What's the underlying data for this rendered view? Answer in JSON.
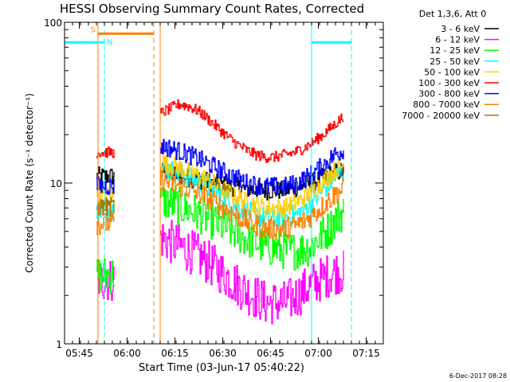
{
  "chart_data": {
    "type": "line",
    "title": "HESSI Observing Summary Count Rates, Corrected",
    "xlabel": "Start Time (03-Jun-17 05:40:22)",
    "ylabel": "Corrected Count Rate (s⁻¹ detector⁻¹)",
    "yscale": "log",
    "ylim": [
      1,
      100
    ],
    "xlim_minutes": [
      0,
      100
    ],
    "x_ticks": [
      "05:45",
      "06:00",
      "06:15",
      "06:30",
      "06:45",
      "07:00",
      "07:15"
    ],
    "x_tick_minutes": [
      4.63,
      19.63,
      34.63,
      49.63,
      64.63,
      79.63,
      94.63
    ],
    "y_ticks": [
      "1",
      "10",
      "100"
    ],
    "y_tick_values": [
      1,
      10,
      100
    ],
    "footer": "6-Dec-2017 08:28",
    "legend": {
      "title": "Det 1,3,6, Att 0",
      "placement": "right",
      "entries": [
        "3 - 6 keV",
        "6 - 12 keV",
        "12 - 25 keV",
        "25 - 50 keV",
        "50 - 100 keV",
        "100 - 300 keV",
        "300 - 800 keV",
        "800 - 7000 keV",
        "7000 - 20000 keV"
      ]
    },
    "series": [
      {
        "name": "3 - 6 keV",
        "color": "#000000",
        "noise": 0.06,
        "segments": [
          {
            "x": [
              10,
              15.5
            ],
            "y": [
              11,
              11
            ]
          },
          {
            "x": [
              30,
              31.5,
              33,
              39,
              45,
              51,
              57,
              63,
              69,
              73,
              77,
              80,
              83,
              85,
              87.5
            ],
            "y": [
              11.5,
              12,
              11.5,
              10.8,
              10.2,
              9.6,
              9.2,
              9.0,
              9.0,
              9.4,
              10.0,
              10.6,
              11.2,
              11.6,
              12
            ]
          }
        ]
      },
      {
        "name": "6 - 12 keV",
        "color": "#ff00ff",
        "noise": 0.14,
        "segments": [
          {
            "x": [
              10,
              15.5
            ],
            "y": [
              2.5,
              2.5
            ]
          },
          {
            "x": [
              30,
              33,
              39,
              45,
              51,
              57,
              63,
              69,
              73,
              77,
              80,
              83,
              85,
              87.5
            ],
            "y": [
              4.6,
              4.3,
              3.8,
              3.2,
              2.6,
              2.1,
              1.8,
              1.8,
              2.0,
              2.3,
              2.5,
              2.7,
              2.8,
              2.8
            ]
          }
        ]
      },
      {
        "name": "12 - 25 keV",
        "color": "#00ff00",
        "noise": 0.12,
        "segments": [
          {
            "x": [
              10,
              15.5
            ],
            "y": [
              2.7,
              2.7
            ]
          },
          {
            "x": [
              30,
              33,
              39,
              45,
              51,
              57,
              63,
              69,
              73,
              77,
              80,
              83,
              85,
              87.5
            ],
            "y": [
              7.8,
              7.5,
              6.8,
              6.0,
              5.2,
              4.5,
              4.0,
              3.8,
              3.8,
              4.0,
              4.6,
              5.2,
              6.0,
              6.6
            ]
          }
        ]
      },
      {
        "name": "25 - 50 keV",
        "color": "#00ffff",
        "noise": 0.07,
        "segments": [
          {
            "x": [
              10,
              15.5
            ],
            "y": [
              6.8,
              6.8
            ]
          },
          {
            "x": [
              30,
              33,
              39,
              45,
              51,
              57,
              63,
              69,
              73,
              77,
              80,
              83,
              85,
              87.5
            ],
            "y": [
              12.5,
              12.0,
              10.8,
              9.4,
              7.8,
              6.6,
              6.0,
              6.0,
              6.4,
              7.4,
              8.6,
              10.0,
              11.0,
              12.0
            ]
          }
        ]
      },
      {
        "name": "50 - 100 keV",
        "color": "#ffcc00",
        "noise": 0.06,
        "segments": [
          {
            "x": [
              10,
              15.5
            ],
            "y": [
              8.3,
              8.3
            ]
          },
          {
            "x": [
              30,
              33,
              39,
              45,
              51,
              57,
              63,
              69,
              73,
              77,
              80,
              83,
              85,
              87.5
            ],
            "y": [
              13.5,
              13.0,
              11.8,
              10.4,
              8.8,
              7.6,
              7.0,
              7.0,
              7.6,
              8.6,
              9.8,
              11.2,
              12.2,
              13.0
            ]
          }
        ]
      },
      {
        "name": "100 - 300 keV",
        "color": "#ff0000",
        "noise": 0.035,
        "segments": [
          {
            "x": [
              10,
              15.5
            ],
            "y": [
              15.5,
              15.5
            ]
          },
          {
            "x": [
              30,
              33,
              36,
              39,
              42,
              45,
              48,
              51,
              54,
              57,
              60,
              63,
              66,
              69,
              72,
              75,
              78,
              81,
              84,
              86,
              87.5
            ],
            "y": [
              27,
              29,
              31,
              30,
              28,
              25,
              22,
              19.5,
              17.5,
              16,
              15,
              14.5,
              14.5,
              15,
              15.5,
              16.5,
              18,
              20,
              22.5,
              24.5,
              26
            ]
          }
        ]
      },
      {
        "name": "300 - 800 keV",
        "color": "#0000ff",
        "noise": 0.06,
        "segments": [
          {
            "x": [
              10,
              15.5
            ],
            "y": [
              9.6,
              9.6
            ]
          },
          {
            "x": [
              30,
              33,
              39,
              45,
              51,
              57,
              63,
              69,
              73,
              77,
              80,
              83,
              85,
              87.5
            ],
            "y": [
              17,
              16.5,
              15.0,
              13.2,
              11.4,
              10.0,
              9.5,
              9.5,
              10.0,
              11.2,
              12.4,
              14.0,
              15.2,
              16.0
            ]
          }
        ]
      },
      {
        "name": "800 - 7000 keV",
        "color": "#ff8000",
        "noise": 0.07,
        "segments": [
          {
            "x": [
              10,
              15.5
            ],
            "y": [
              5.6,
              5.6
            ]
          },
          {
            "x": [
              30,
              33,
              39,
              45,
              51,
              57,
              63,
              69,
              73,
              77,
              80,
              83,
              85,
              87.5
            ],
            "y": [
              10.5,
              10.0,
              9.2,
              8.0,
              6.8,
              5.8,
              5.2,
              5.2,
              5.5,
              6.1,
              6.9,
              7.9,
              8.6,
              9.2
            ]
          }
        ]
      },
      {
        "name": "7000 - 20000 keV",
        "color": "#aa7700",
        "noise": 0.06,
        "segments": [
          {
            "x": [
              10,
              15.5
            ],
            "y": [
              7.1,
              7.1
            ]
          }
        ]
      }
    ],
    "markers": {
      "saa_label": "S",
      "night_label": "N",
      "saa_color": "#ff7f00",
      "night_color": "#00ffff",
      "saa_bars": [
        {
          "x": [
            10.5,
            28
          ],
          "y": 85
        }
      ],
      "night_bars": [
        {
          "x": [
            0,
            12.5
          ],
          "y": 75
        },
        {
          "x": [
            77.5,
            90
          ],
          "y": 75
        }
      ],
      "saa_solid_lines": [
        10.5,
        30
      ],
      "saa_dashed_lines": [
        28
      ],
      "night_solid_lines": [
        0,
        77.5
      ],
      "night_dashed_lines": [
        12.5,
        90
      ]
    }
  }
}
